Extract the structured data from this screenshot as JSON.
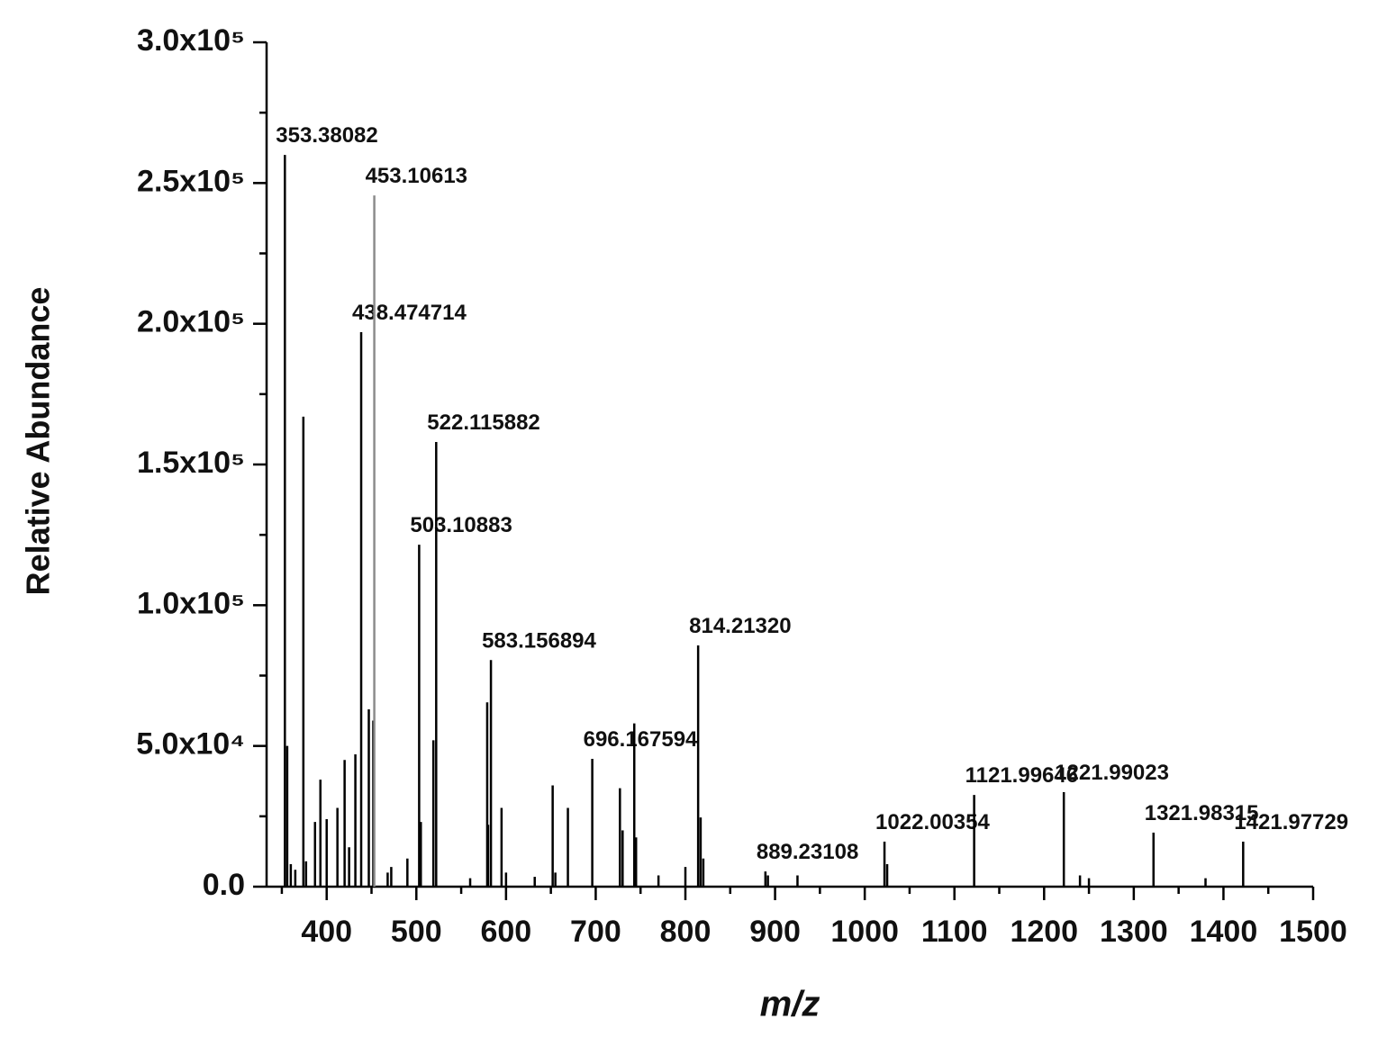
{
  "chart_data": {
    "type": "stem",
    "x_label": "m/z",
    "y_label": "Relative Abundance",
    "xlim": [
      333,
      1500
    ],
    "ylim": [
      0,
      300000
    ],
    "xticks": [
      400,
      500,
      600,
      700,
      800,
      900,
      1000,
      1100,
      1200,
      1300,
      1400,
      1500
    ],
    "xminorticks": [
      350,
      450,
      550,
      650,
      750,
      850,
      950,
      1050,
      1150,
      1250,
      1350,
      1450
    ],
    "yticks": [
      {
        "value": 0,
        "label": "0.0"
      },
      {
        "value": 50000,
        "label": "5.0x10⁴"
      },
      {
        "value": 100000,
        "label": "1.0x10⁵"
      },
      {
        "value": 150000,
        "label": "1.5x10⁵"
      },
      {
        "value": 200000,
        "label": "2.0x10⁵"
      },
      {
        "value": 250000,
        "label": "2.5x10⁵"
      },
      {
        "value": 300000,
        "label": "3.0x10⁵"
      }
    ],
    "yminorticks": [
      25000,
      75000,
      125000,
      175000,
      225000,
      275000
    ],
    "series": [
      {
        "color": "#000000",
        "x": [
          353.38082,
          356,
          360,
          365,
          374,
          377,
          387,
          393,
          400,
          412,
          420,
          425,
          432,
          438.474714,
          447,
          452,
          468,
          472,
          490,
          503.10883,
          505,
          519,
          522.115882,
          560,
          579,
          580,
          583.156894,
          595,
          600,
          632,
          652,
          655,
          669,
          696.167594,
          727,
          730,
          743,
          745,
          770,
          800,
          814.2132,
          817,
          820,
          889.23108,
          892,
          925,
          1022.00354,
          1025,
          1121.99646,
          1221.99023,
          1240,
          1250,
          1321.98315,
          1380,
          1421.97729
        ],
        "values": [
          260000,
          50000,
          8000,
          6000,
          167000,
          9000,
          23000,
          38000,
          24000,
          28000,
          45000,
          14000,
          47000,
          197000,
          63000,
          59000,
          5000,
          7000,
          10000,
          121500,
          23000,
          52000,
          158000,
          3000,
          65500,
          22000,
          80500,
          28000,
          5000,
          3500,
          36000,
          5000,
          28000,
          45400,
          35000,
          20000,
          58000,
          17500,
          4000,
          7000,
          85700,
          24600,
          10000,
          5400,
          4000,
          4000,
          16000,
          8000,
          32600,
          33600,
          4000,
          3000,
          19200,
          3000,
          16000
        ],
        "x_labels": [
          "353.38082",
          null,
          null,
          null,
          null,
          null,
          null,
          null,
          null,
          null,
          null,
          null,
          null,
          "438.474714",
          null,
          null,
          null,
          null,
          null,
          "503.10883",
          null,
          null,
          "522.115882",
          null,
          null,
          null,
          "583.156894",
          null,
          null,
          null,
          null,
          null,
          null,
          "696.167594",
          null,
          null,
          null,
          null,
          null,
          null,
          "814.21320",
          null,
          null,
          "889.23108",
          null,
          null,
          "1022.00354",
          null,
          "1121.99646",
          "1221.99023",
          null,
          null,
          "1321.98315",
          null,
          "1421.97729"
        ]
      },
      {
        "color": "#8c8c8c",
        "x": [
          453.10613
        ],
        "values": [
          245600
        ],
        "x_labels": [
          "453.10613"
        ]
      }
    ]
  }
}
